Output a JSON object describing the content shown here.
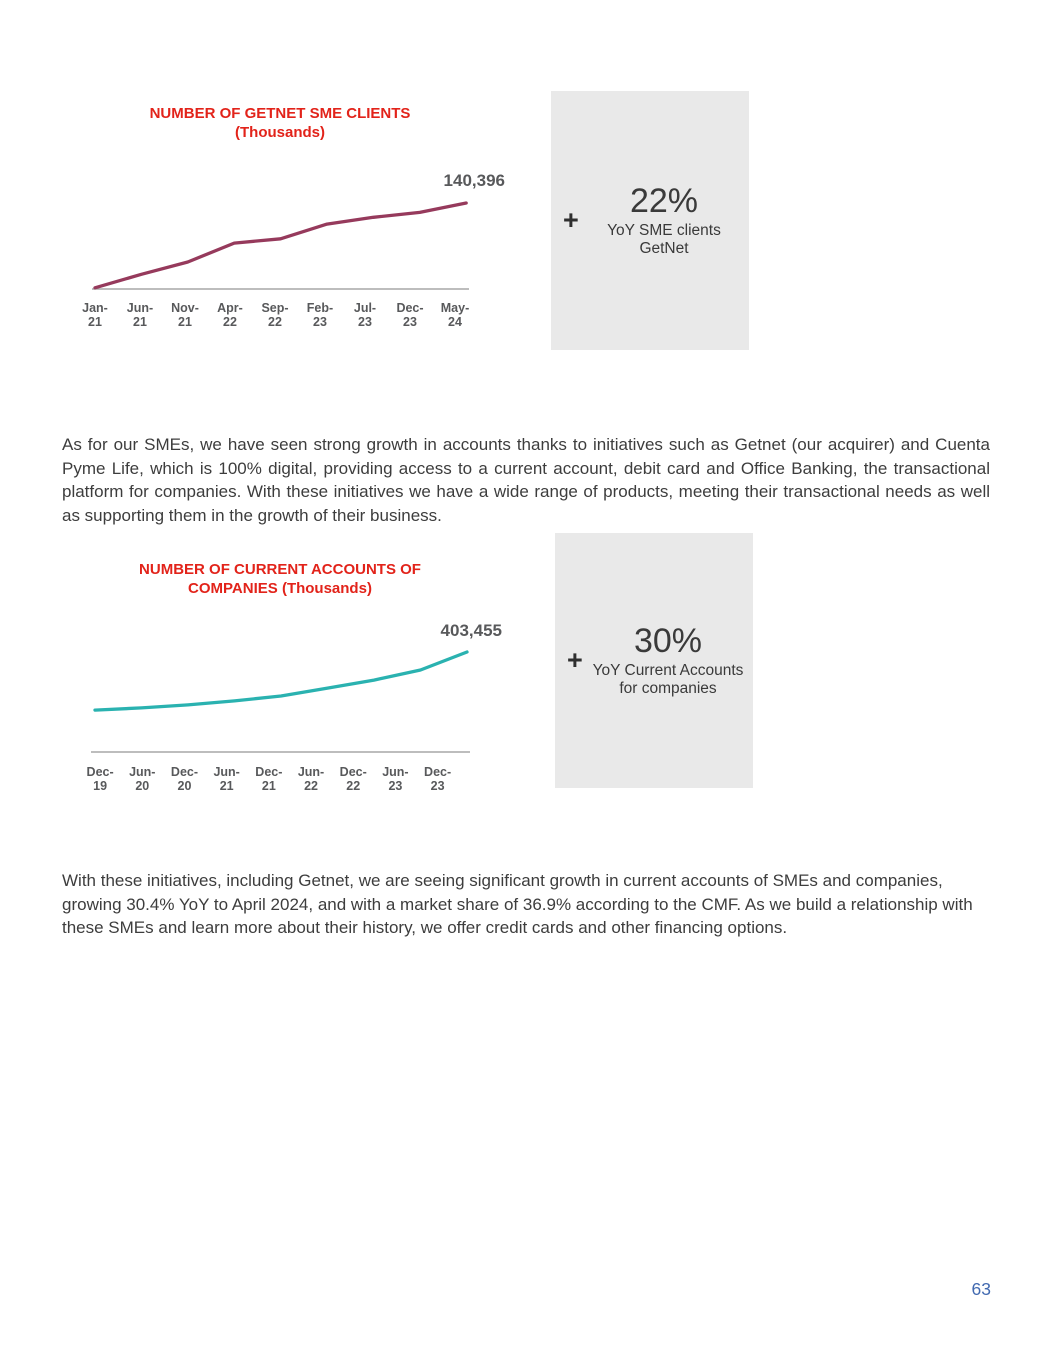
{
  "colors": {
    "title_red": "#e2231a",
    "sme_line": "#963a5c",
    "accounts_line": "#2ab2b0",
    "label_gray": "#58595b",
    "body_text": "#3d3d3d",
    "callout_bg": "#e9e9e9",
    "page_number_blue": "#4169b0"
  },
  "chart_data": [
    {
      "type": "line",
      "title": "NUMBER OF GETNET SME CLIENTS",
      "subtitle": "(Thousands)",
      "categories": [
        "Jan-21",
        "Jun-21",
        "Nov-21",
        "Apr-22",
        "Sep-22",
        "Feb-23",
        "Jul-23",
        "Dec-23",
        "May-24"
      ],
      "ticks": [
        {
          "m": "Jan-",
          "y": "21"
        },
        {
          "m": "Jun-",
          "y": "21"
        },
        {
          "m": "Nov-",
          "y": "21"
        },
        {
          "m": "Apr-",
          "y": "22"
        },
        {
          "m": "Sep-",
          "y": "22"
        },
        {
          "m": "Feb-",
          "y": "23"
        },
        {
          "m": "Jul-",
          "y": "23"
        },
        {
          "m": "Dec-",
          "y": "23"
        },
        {
          "m": "May-",
          "y": "24"
        }
      ],
      "values": [
        2,
        24,
        44,
        75,
        82,
        106,
        117,
        125,
        140.396
      ],
      "end_label": "140,396",
      "ylim": [
        0,
        156
      ],
      "xlabel": "",
      "ylabel": "",
      "grid": false,
      "legend": "none",
      "color": "#963a5c"
    },
    {
      "type": "line",
      "title": "NUMBER OF CURRENT ACCOUNTS OF",
      "subtitle": "COMPANIES (Thousands)",
      "categories": [
        "Dec-19",
        "Jun-20",
        "Dec-20",
        "Jun-21",
        "Dec-21",
        "Jun-22",
        "Dec-22",
        "Jun-23",
        "Dec-23"
      ],
      "ticks": [
        {
          "m": "Dec-",
          "y": "19"
        },
        {
          "m": "Jun-",
          "y": "20"
        },
        {
          "m": "Dec-",
          "y": "20"
        },
        {
          "m": "Jun-",
          "y": "21"
        },
        {
          "m": "Dec-",
          "y": "21"
        },
        {
          "m": "Jun-",
          "y": "22"
        },
        {
          "m": "Dec-",
          "y": "22"
        },
        {
          "m": "Jun-",
          "y": "23"
        },
        {
          "m": "Dec-",
          "y": "23"
        }
      ],
      "values": [
        169,
        178,
        190,
        206,
        226,
        258,
        290,
        331,
        403.455
      ],
      "end_label": "403,455",
      "ylim": [
        0,
        432
      ],
      "xlabel": "",
      "ylabel": "",
      "grid": false,
      "legend": "none",
      "color": "#2ab2b0"
    }
  ],
  "callouts": [
    {
      "plus": "+",
      "value": "22%",
      "label_line1": "YoY SME clients",
      "label_line2": "GetNet"
    },
    {
      "plus": "+",
      "value": "30%",
      "label_line1": "YoY Current Accounts",
      "label_line2": "for companies"
    }
  ],
  "paragraphs": {
    "p1": "As for our SMEs, we have seen strong growth in accounts thanks to initiatives such as Getnet (our acquirer) and Cuenta Pyme Life, which is 100% digital, providing access to a current account, debit card and Office Banking, the transactional platform for companies. With these initiatives we have a wide range of products, meeting their transactional needs as well as supporting them in the growth of their business.",
    "p2": "With these initiatives, including Getnet, we are seeing significant growth in current accounts of SMEs and companies, growing 30.4% YoY to April 2024, and with a market share of 36.9% according to the CMF. As we build a relationship with these SMEs and learn more about their history, we offer credit cards and other financing options."
  },
  "page": {
    "number": "63"
  }
}
